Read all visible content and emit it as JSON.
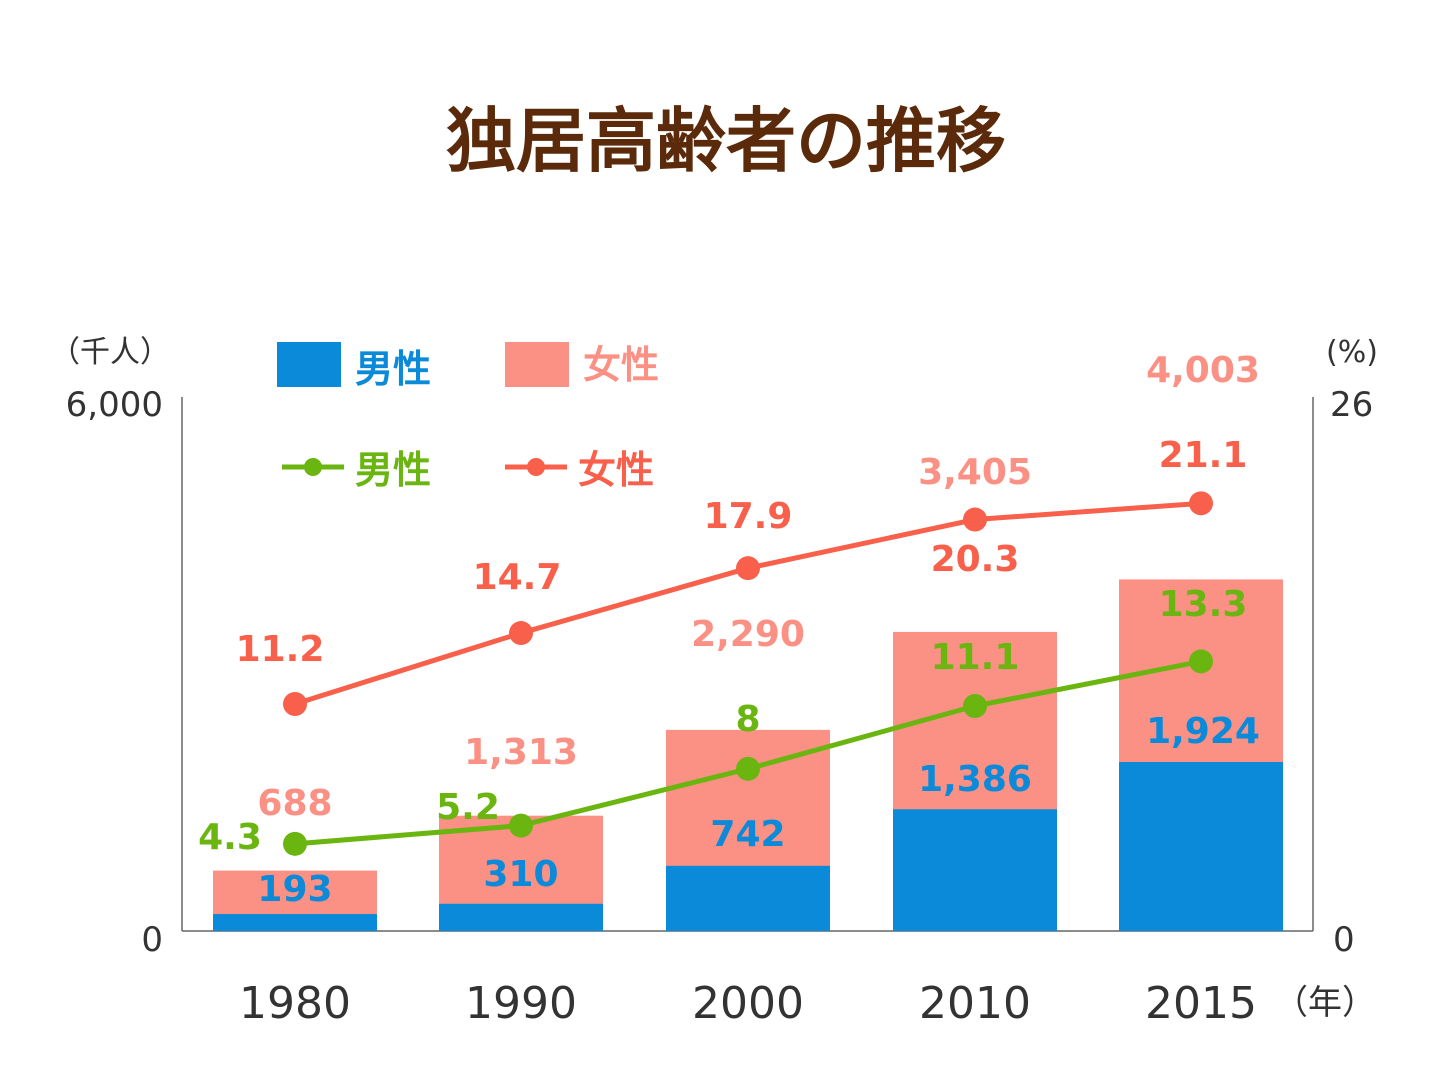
{
  "title": "独居高齢者の推移",
  "chart_data": {
    "type": "bar",
    "stacked": true,
    "title": "独居高齢者の推移",
    "categories": [
      "1980",
      "1990",
      "2000",
      "2010",
      "2015"
    ],
    "x_unit": "（年）",
    "left_axis": {
      "unit": "（千人）",
      "min": 0,
      "max": 6000,
      "min_label": "0",
      "max_label": "6,000"
    },
    "right_axis": {
      "unit": "(%)",
      "min": 0,
      "max": 26,
      "min_label": "0",
      "max_label": "26"
    },
    "bar_series": [
      {
        "name": "男性",
        "color": "#0a8ad8",
        "values": [
          193,
          310,
          742,
          1386,
          1924
        ],
        "labels": [
          "193",
          "310",
          "742",
          "1,386",
          "1,924"
        ]
      }
    ],
    "totals": {
      "name": "女性",
      "color": "#fb9185",
      "values": [
        688,
        1313,
        2290,
        3405,
        4003
      ],
      "labels": [
        "688",
        "1,313",
        "2,290",
        "3,405",
        "4,003"
      ]
    },
    "line_series": [
      {
        "name": "男性",
        "color": "#6ab50f",
        "values": [
          4.3,
          5.2,
          8,
          11.1,
          13.3
        ],
        "labels": [
          "4.3",
          "5.2",
          "8",
          "11.1",
          "13.3"
        ]
      },
      {
        "name": "女性",
        "color": "#f8604b",
        "values": [
          11.2,
          14.7,
          17.9,
          20.3,
          21.1
        ],
        "labels": [
          "11.2",
          "14.7",
          "17.9",
          "20.3",
          "21.1"
        ]
      }
    ],
    "legend": {
      "bars": [
        {
          "label": "男性",
          "color": "#0a8ad8"
        },
        {
          "label": "女性",
          "color": "#fb9185"
        }
      ],
      "lines": [
        {
          "label": "男性",
          "color": "#6ab50f"
        },
        {
          "label": "女性",
          "color": "#f8604b"
        }
      ]
    }
  }
}
